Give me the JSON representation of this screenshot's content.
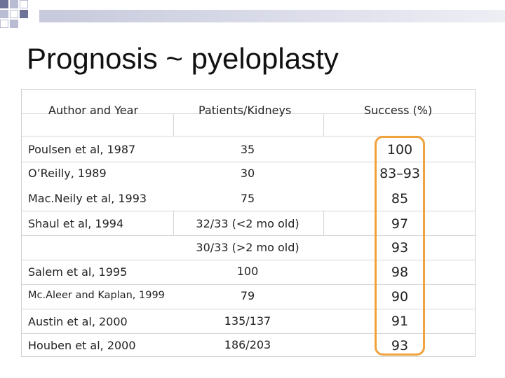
{
  "slide": {
    "title": "Prognosis ~ pyeloplasty"
  },
  "table": {
    "headers": [
      "Author and Year",
      "Patients/Kidneys",
      "Success (%)"
    ],
    "rows": [
      {
        "author": "Poulsen et al, 1987",
        "patients": "35",
        "success": "100"
      },
      {
        "author": "O’Reilly, 1989",
        "patients": "30",
        "success": "83–93"
      },
      {
        "author": "Mac.Neily et al, 1993",
        "patients": "75",
        "success": "85"
      },
      {
        "author": "Shaul et al, 1994",
        "patients": "32/33 (<2 mo old)",
        "success": "97"
      },
      {
        "author": "",
        "patients": "30/33 (>2 mo old)",
        "success": "93"
      },
      {
        "author": "Salem et al, 1995",
        "patients": "100",
        "success": "98"
      },
      {
        "author": "Mc.Aleer and Kaplan, 1999",
        "patients": "79",
        "success": "90"
      },
      {
        "author": "Austin et al, 2000",
        "patients": "135/137",
        "success": "91"
      },
      {
        "author": "Houben et al, 2000",
        "patients": "186/203",
        "success": "93"
      }
    ],
    "highlight_color": "#f0a23c"
  }
}
